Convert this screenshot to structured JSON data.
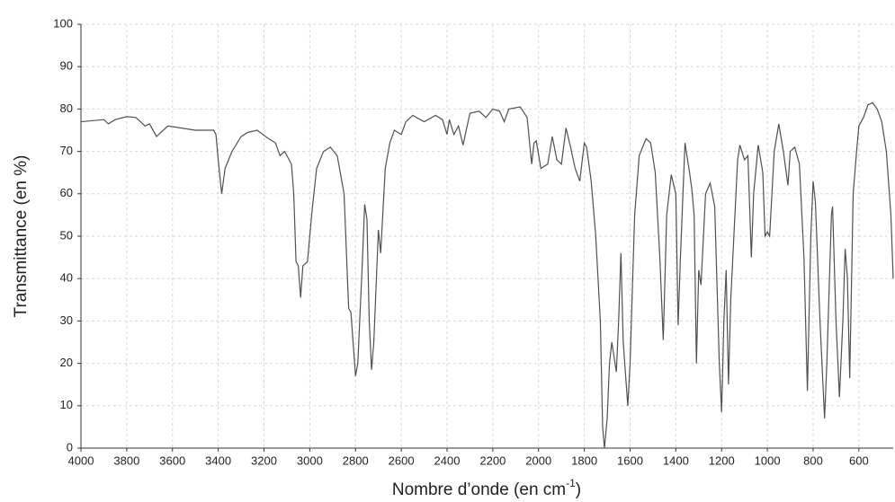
{
  "chart_data": {
    "type": "line",
    "ylabel": "Transmittance (en %)",
    "xlabel": {
      "text": "Nombre d’onde (en cm",
      "superscript": "-1",
      "suffix": ")"
    },
    "xlim": [
      4000,
      450
    ],
    "ylim": [
      0,
      100
    ],
    "xticks": [
      4000,
      3800,
      3600,
      3400,
      3200,
      3000,
      2800,
      2600,
      2400,
      2200,
      2000,
      1800,
      1600,
      1400,
      1200,
      1000,
      800,
      600
    ],
    "yticks": [
      0,
      10,
      20,
      30,
      40,
      50,
      60,
      70,
      80,
      90,
      100
    ],
    "grid": true,
    "color": "#505050",
    "x": [
      4000,
      3900,
      3880,
      3850,
      3800,
      3760,
      3720,
      3700,
      3670,
      3650,
      3620,
      3560,
      3500,
      3420,
      3410,
      3400,
      3385,
      3370,
      3340,
      3300,
      3270,
      3230,
      3180,
      3150,
      3130,
      3110,
      3080,
      3070,
      3060,
      3050,
      3040,
      3030,
      3010,
      2990,
      2970,
      2940,
      2910,
      2880,
      2850,
      2830,
      2820,
      2800,
      2790,
      2770,
      2760,
      2750,
      2740,
      2730,
      2720,
      2700,
      2690,
      2670,
      2650,
      2630,
      2600,
      2580,
      2550,
      2500,
      2450,
      2420,
      2400,
      2390,
      2370,
      2350,
      2330,
      2300,
      2260,
      2230,
      2200,
      2170,
      2150,
      2130,
      2080,
      2050,
      2030,
      2020,
      2010,
      1990,
      1960,
      1940,
      1920,
      1900,
      1880,
      1860,
      1840,
      1820,
      1800,
      1790,
      1770,
      1750,
      1730,
      1720,
      1712,
      1700,
      1690,
      1680,
      1660,
      1650,
      1640,
      1630,
      1610,
      1600,
      1580,
      1560,
      1530,
      1510,
      1490,
      1470,
      1455,
      1440,
      1420,
      1400,
      1390,
      1380,
      1360,
      1340,
      1330,
      1320,
      1310,
      1300,
      1290,
      1270,
      1250,
      1230,
      1210,
      1200,
      1190,
      1180,
      1170,
      1160,
      1130,
      1120,
      1100,
      1085,
      1070,
      1060,
      1040,
      1020,
      1010,
      1000,
      990,
      970,
      950,
      930,
      910,
      900,
      880,
      860,
      840,
      825,
      810,
      800,
      790,
      770,
      750,
      740,
      720,
      715,
      700,
      685,
      670,
      660,
      650,
      640,
      625,
      610,
      600,
      580,
      560,
      540,
      520,
      500,
      480,
      460,
      450
    ],
    "y": [
      77,
      77.5,
      76.5,
      77.5,
      78.2,
      78,
      76,
      76.5,
      73.5,
      74.5,
      76,
      75.5,
      75,
      75,
      74,
      68,
      60,
      66,
      70,
      73.5,
      74.5,
      75,
      73,
      72,
      69,
      70,
      67,
      60,
      44,
      43,
      35.5,
      43,
      44,
      56,
      66,
      70,
      71,
      69,
      60,
      33,
      32,
      17,
      20,
      44,
      57.5,
      54,
      30,
      18.5,
      25,
      51.5,
      46,
      66,
      72,
      75,
      74,
      77,
      78.5,
      77,
      78.5,
      77.5,
      74,
      77.5,
      74,
      76,
      71.5,
      79,
      79.5,
      78,
      80,
      79.5,
      77,
      80,
      80.5,
      78,
      67,
      72,
      72.5,
      66,
      67,
      73.5,
      68,
      67,
      75.5,
      71,
      66,
      63,
      72,
      71,
      63,
      50,
      30,
      5,
      0,
      7,
      20,
      25,
      18,
      30,
      46,
      25,
      10,
      20,
      55,
      69,
      73,
      72,
      65,
      45,
      25.5,
      55,
      64.5,
      60,
      29,
      45,
      72,
      65,
      61,
      55,
      20,
      42,
      38.5,
      60,
      62.5,
      57,
      20,
      8.5,
      30,
      42,
      15,
      35,
      68,
      71.5,
      68,
      69,
      45,
      60,
      71.5,
      65,
      50,
      51,
      50,
      70,
      76.5,
      70,
      62,
      70,
      71,
      67,
      45,
      13.5,
      50,
      63,
      58,
      30,
      7,
      20,
      55,
      57,
      30,
      12,
      30,
      47,
      40,
      16.5,
      60,
      70,
      76,
      78,
      81,
      81.5,
      80,
      77,
      70,
      55,
      40
    ]
  }
}
